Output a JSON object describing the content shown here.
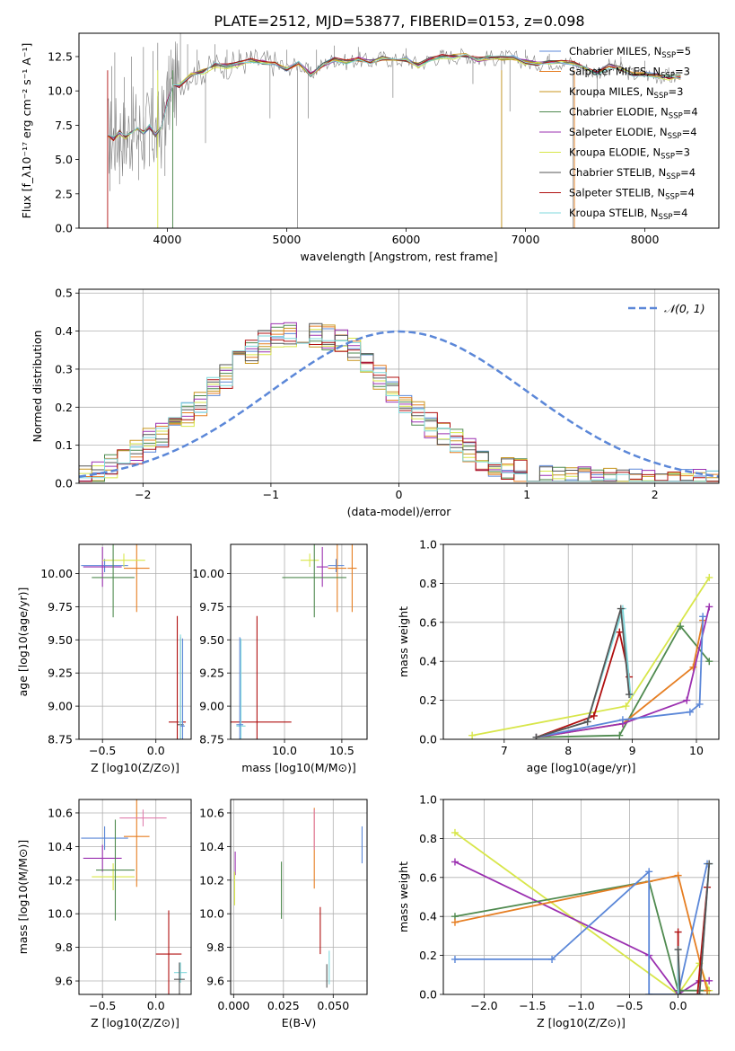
{
  "figure": {
    "title": "PLATE=2512, MJD=53877, FIBERID=0153, z=0.098"
  },
  "colors": {
    "series": [
      "#5b87d8",
      "#e67e22",
      "#c8961e",
      "#4f8a4f",
      "#9b30b0",
      "#d8e64a",
      "#555555",
      "#b01010",
      "#7fd8dc"
    ],
    "data": "#808080",
    "normal": "#5b87d8",
    "grid": "#b0b0b0"
  },
  "chart_data": [
    {
      "id": "spectrum",
      "type": "line",
      "title": "PLATE=2512, MJD=53877, FIBERID=0153, z=0.098",
      "xlabel": "wavelength [Angstrom, rest frame]",
      "ylabel": "Flux [f_λ10⁻¹⁷ erg cm⁻² s⁻¹ A⁻¹]",
      "xlim": [
        3260,
        8620
      ],
      "ylim": [
        0,
        14.2
      ],
      "xticks": [
        "4000",
        "5000",
        "6000",
        "7000",
        "8000"
      ],
      "yticks": [
        "0.0",
        "2.5",
        "5.0",
        "7.5",
        "10.0",
        "12.5"
      ],
      "grid": false,
      "legend_position": "top-right",
      "legend": [
        {
          "name": "Chabrier MILES",
          "sub": "SSP",
          "n": "5"
        },
        {
          "name": "Salpeter MILES",
          "sub": "SSP",
          "n": "3"
        },
        {
          "name": "Kroupa MILES",
          "sub": "SSP",
          "n": "3"
        },
        {
          "name": "Chabrier ELODIE",
          "sub": "SSP",
          "n": "4"
        },
        {
          "name": "Salpeter ELODIE",
          "sub": "SSP",
          "n": "4"
        },
        {
          "name": "Kroupa ELODIE",
          "sub": "SSP",
          "n": "3"
        },
        {
          "name": "Chabrier STELIB",
          "sub": "SSP",
          "n": "4"
        },
        {
          "name": "Salpeter STELIB",
          "sub": "SSP",
          "n": "4"
        },
        {
          "name": "Kroupa STELIB",
          "sub": "SSP",
          "n": "4"
        }
      ],
      "model_continuum": {
        "x": [
          3500,
          3550,
          3600,
          3650,
          3700,
          3750,
          3800,
          3850,
          3900,
          3950,
          4000,
          4050,
          4100,
          4200,
          4300,
          4400,
          4500,
          4600,
          4700,
          4800,
          4900,
          5000,
          5100,
          5200,
          5300,
          5400,
          5500,
          5600,
          5700,
          5800,
          5900,
          6000,
          6100,
          6200,
          6300,
          6400,
          6500,
          6600,
          6700,
          6800,
          6900,
          7000,
          7100,
          7200,
          7300,
          7400,
          7500,
          7600,
          7700,
          7800,
          7900,
          8000,
          8100,
          8200,
          8300
        ],
        "y": [
          6.8,
          6.5,
          7.0,
          6.6,
          7.1,
          7.2,
          6.9,
          7.4,
          6.8,
          7.3,
          9.2,
          10.5,
          10.4,
          11.2,
          11.4,
          11.9,
          11.8,
          12.0,
          12.2,
          12.1,
          12.0,
          11.6,
          12.0,
          11.2,
          11.9,
          12.3,
          12.1,
          12.3,
          12.1,
          12.4,
          12.2,
          12.3,
          11.9,
          12.3,
          12.5,
          12.5,
          12.6,
          12.3,
          12.4,
          12.4,
          12.4,
          12.1,
          12.0,
          12.1,
          12.1,
          12.0,
          11.6,
          11.3,
          11.8,
          11.6,
          11.2,
          11.2,
          11.1,
          11.0,
          11.0
        ]
      },
      "data_spikes": [
        {
          "x": 3520,
          "y": 2.7
        },
        {
          "x": 3535,
          "y": 11.8
        },
        {
          "x": 3560,
          "y": 12.8
        },
        {
          "x": 3600,
          "y": 3.2
        },
        {
          "x": 3640,
          "y": 11.0
        },
        {
          "x": 3700,
          "y": 12.5
        },
        {
          "x": 3760,
          "y": 3.5
        },
        {
          "x": 3800,
          "y": 13.2
        },
        {
          "x": 3850,
          "y": 4.5
        },
        {
          "x": 3880,
          "y": 12.9
        },
        {
          "x": 3920,
          "y": 13.5
        },
        {
          "x": 3980,
          "y": 3.8
        },
        {
          "x": 4030,
          "y": 13.0
        },
        {
          "x": 4045,
          "y": 0.0
        },
        {
          "x": 4110,
          "y": 14.2
        },
        {
          "x": 4170,
          "y": 13.4
        },
        {
          "x": 4250,
          "y": 13.0
        },
        {
          "x": 4320,
          "y": 6.2
        },
        {
          "x": 4400,
          "y": 13.4
        },
        {
          "x": 4500,
          "y": 13.0
        },
        {
          "x": 4600,
          "y": 13.0
        },
        {
          "x": 4700,
          "y": 12.9
        },
        {
          "x": 4860,
          "y": 8.0
        },
        {
          "x": 5000,
          "y": 13.0
        },
        {
          "x": 5090,
          "y": 0.0
        },
        {
          "x": 5180,
          "y": 8.0
        },
        {
          "x": 5250,
          "y": 13.0
        },
        {
          "x": 5400,
          "y": 13.3
        },
        {
          "x": 5600,
          "y": 13.2
        },
        {
          "x": 5890,
          "y": 9.5
        },
        {
          "x": 6000,
          "y": 13.1
        },
        {
          "x": 6300,
          "y": 13.0
        },
        {
          "x": 6560,
          "y": 10.5
        },
        {
          "x": 6800,
          "y": 0.0
        },
        {
          "x": 6870,
          "y": 8.5
        },
        {
          "x": 7000,
          "y": 13.0
        },
        {
          "x": 7200,
          "y": 12.7
        },
        {
          "x": 7400,
          "y": 0.0
        },
        {
          "x": 7600,
          "y": 9.5
        },
        {
          "x": 7800,
          "y": 12.5
        },
        {
          "x": 8000,
          "y": 12.2
        },
        {
          "x": 8200,
          "y": 11.7
        }
      ]
    },
    {
      "id": "residuals",
      "type": "line",
      "xlabel": "(data-model)/error",
      "ylabel": "Normed distribution",
      "xlim": [
        -2.5,
        2.5
      ],
      "ylim": [
        0,
        0.51
      ],
      "xticks": [
        "−2",
        "−1",
        "0",
        "1",
        "2"
      ],
      "yticks": [
        "0.0",
        "0.1",
        "0.2",
        "0.3",
        "0.4",
        "0.5"
      ],
      "grid": true,
      "legend_position": "top-right",
      "legend": [
        "𝒩(0, 1)"
      ],
      "bin_width": 0.1,
      "series": [
        {
          "values": [
            0.021,
            0.029,
            0.046,
            0.068,
            0.082,
            0.114,
            0.129,
            0.154,
            0.181,
            0.212,
            0.246,
            0.28,
            0.318,
            0.348,
            0.37,
            0.385,
            0.392,
            0.398,
            0.392,
            0.385,
            0.37,
            0.35,
            0.32,
            0.282,
            0.245,
            0.211,
            0.18,
            0.154,
            0.129,
            0.107,
            0.085,
            0.067,
            0.053,
            0.042,
            0.031,
            0.024,
            0.018,
            0.014,
            0.011,
            0.009,
            0.007,
            0.005,
            0.004,
            0.003,
            0.003,
            0.003,
            0.002,
            0.002,
            0.002,
            0.002
          ]
        }
      ]
    },
    {
      "id": "age-vs-Z",
      "type": "scatter",
      "xlabel": "Z [log10(Z/Z⊙)]",
      "ylabel": "age  [log10(age/yr)]",
      "xlim": [
        -0.72,
        0.33
      ],
      "ylim": [
        8.75,
        10.22
      ],
      "xticks": [
        "−0.5",
        "0.0"
      ],
      "yticks": [
        "8.75",
        "9.00",
        "9.25",
        "9.50",
        "9.75",
        "10.00"
      ],
      "grid": true,
      "points": [
        {
          "x": -0.48,
          "y": 10.06,
          "xerr": 0.22,
          "yerr": 0.05,
          "c": 0
        },
        {
          "x": -0.18,
          "y": 10.04,
          "xerr": 0.12,
          "yerr": 0.33,
          "c": 1
        },
        {
          "x": -0.5,
          "y": 10.05,
          "xerr": 0.18,
          "yerr": 0.15,
          "c": 4
        },
        {
          "x": -0.3,
          "y": 10.1,
          "xerr": 0.2,
          "yerr": 0.05,
          "c": 5
        },
        {
          "x": -0.4,
          "y": 9.97,
          "xerr": 0.2,
          "yerr": 0.3,
          "c": 3
        },
        {
          "x": 0.2,
          "y": 8.88,
          "xerr": 0.08,
          "yerr": 0.8,
          "c": 7
        },
        {
          "x": 0.23,
          "y": 8.86,
          "xerr": 0.03,
          "yerr": 0.66,
          "c": 6
        },
        {
          "x": 0.23,
          "y": 8.88,
          "xerr": 0.02,
          "yerr": 0.66,
          "c": 8
        },
        {
          "x": 0.25,
          "y": 8.85,
          "xerr": 0.02,
          "yerr": 0.66,
          "c": 0
        }
      ]
    },
    {
      "id": "age-vs-mass",
      "type": "scatter",
      "xlabel": "mass [log10(M/M⊙)]",
      "ylabel": "",
      "xlim": [
        9.53,
        10.72
      ],
      "ylim": [
        8.75,
        10.22
      ],
      "xticks": [
        "10.0",
        "10.5"
      ],
      "yticks": [
        "8.75",
        "9.00",
        "9.25",
        "9.50",
        "9.75",
        "10.00"
      ],
      "grid": true,
      "points": [
        {
          "x": 10.45,
          "y": 10.06,
          "xerr": 0.07,
          "yerr": 0.05,
          "c": 0
        },
        {
          "x": 10.46,
          "y": 10.04,
          "xerr": 0.08,
          "yerr": 0.33,
          "c": 1
        },
        {
          "x": 10.33,
          "y": 10.05,
          "xerr": 0.05,
          "yerr": 0.15,
          "c": 4
        },
        {
          "x": 10.22,
          "y": 10.1,
          "xerr": 0.08,
          "yerr": 0.05,
          "c": 5
        },
        {
          "x": 10.26,
          "y": 9.97,
          "xerr": 0.28,
          "yerr": 0.3,
          "c": 3
        },
        {
          "x": 10.59,
          "y": 10.04,
          "xerr": 0.04,
          "yerr": 0.33,
          "c": 1
        },
        {
          "x": 9.76,
          "y": 8.88,
          "xerr": 0.3,
          "yerr": 0.8,
          "c": 7
        },
        {
          "x": 9.62,
          "y": 8.85,
          "xerr": 0.04,
          "yerr": 0.66,
          "c": 8
        },
        {
          "x": 9.61,
          "y": 8.86,
          "xerr": 0.03,
          "yerr": 0.66,
          "c": 0
        }
      ]
    },
    {
      "id": "weight-vs-age",
      "type": "line",
      "xlabel": "age  [log10(age/yr)]",
      "ylabel": "mass weight",
      "xlim": [
        6.05,
        10.35
      ],
      "ylim": [
        0,
        1.0
      ],
      "xticks": [
        "7",
        "8",
        "9",
        "10"
      ],
      "yticks": [
        "0.0",
        "0.2",
        "0.4",
        "0.6",
        "0.8",
        "1.0"
      ],
      "grid": true,
      "series": [
        {
          "c": 5,
          "x": [
            6.5,
            8.9,
            10.2
          ],
          "y": [
            0.02,
            0.17,
            0.83
          ]
        },
        {
          "c": 3,
          "x": [
            7.5,
            8.8,
            9.75,
            10.2
          ],
          "y": [
            0.01,
            0.02,
            0.58,
            0.4
          ]
        },
        {
          "c": 1,
          "x": [
            7.5,
            8.85,
            9.95,
            10.1
          ],
          "y": [
            0.01,
            0.08,
            0.37,
            0.61
          ]
        },
        {
          "c": 4,
          "x": [
            7.5,
            8.85,
            9.85,
            10.2
          ],
          "y": [
            0.01,
            0.08,
            0.2,
            0.68
          ]
        },
        {
          "c": 0,
          "x": [
            7.5,
            8.85,
            9.9,
            10.05,
            10.1
          ],
          "y": [
            0.01,
            0.1,
            0.14,
            0.18,
            0.63
          ]
        },
        {
          "c": 7,
          "x": [
            7.5,
            8.4,
            8.8,
            8.95
          ],
          "y": [
            0.01,
            0.12,
            0.55,
            0.32
          ]
        },
        {
          "c": 8,
          "x": [
            7.5,
            8.3,
            8.85,
            8.97
          ],
          "y": [
            0.01,
            0.09,
            0.67,
            0.23
          ]
        },
        {
          "c": 6,
          "x": [
            7.5,
            8.3,
            8.82,
            8.95
          ],
          "y": [
            0.01,
            0.09,
            0.67,
            0.23
          ]
        }
      ]
    },
    {
      "id": "mass-vs-Z",
      "type": "scatter",
      "xlabel": "Z [log10(Z/Z⊙)]",
      "ylabel": "mass [log10(M/M⊙)]",
      "xlim": [
        -0.72,
        0.33
      ],
      "ylim": [
        9.52,
        10.68
      ],
      "xticks": [
        "−0.5",
        "0.0"
      ],
      "yticks": [
        "9.6",
        "9.8",
        "10.0",
        "10.2",
        "10.4",
        "10.6"
      ],
      "grid": true,
      "points": [
        {
          "x": -0.48,
          "y": 10.45,
          "xerr": 0.22,
          "yerr": 0.07,
          "c": 0
        },
        {
          "x": -0.18,
          "y": 10.46,
          "xerr": 0.12,
          "yerr": 0.3,
          "c": 1
        },
        {
          "x": -0.12,
          "y": 10.57,
          "xerr": 0.22,
          "yerr": 0.05,
          "c": 9
        },
        {
          "x": -0.5,
          "y": 10.33,
          "xerr": 0.18,
          "yerr": 0.08,
          "c": 4
        },
        {
          "x": -0.4,
          "y": 10.22,
          "xerr": 0.2,
          "yerr": 0.08,
          "c": 5
        },
        {
          "x": -0.38,
          "y": 10.26,
          "xerr": 0.18,
          "yerr": 0.3,
          "c": 3
        },
        {
          "x": 0.12,
          "y": 9.76,
          "xerr": 0.12,
          "yerr": 0.26,
          "c": 7
        },
        {
          "x": 0.23,
          "y": 9.65,
          "xerr": 0.06,
          "yerr": 0.06,
          "c": 8
        },
        {
          "x": 0.22,
          "y": 9.61,
          "xerr": 0.05,
          "yerr": 0.1,
          "c": 6
        }
      ]
    },
    {
      "id": "mass-vs-ebv",
      "type": "scatter",
      "xlabel": "E(B-V)",
      "ylabel": "",
      "xlim": [
        -0.0015,
        0.067
      ],
      "ylim": [
        9.52,
        10.68
      ],
      "xticks": [
        "0.000",
        "0.025",
        "0.050"
      ],
      "yticks": [
        "9.6",
        "9.8",
        "10.0",
        "10.2",
        "10.4",
        "10.6"
      ],
      "grid": true,
      "points": [
        {
          "x": 0.0645,
          "y": 10.41,
          "yerr": 0.11,
          "c": 0
        },
        {
          "x": 0.0405,
          "y": 10.39,
          "yerr": 0.24,
          "c": 1
        },
        {
          "x": 0.0405,
          "y": 10.5,
          "yerr": 0.12,
          "c": 9
        },
        {
          "x": 0.0008,
          "y": 10.3,
          "yerr": 0.07,
          "c": 4
        },
        {
          "x": 0.0005,
          "y": 10.15,
          "yerr": 0.1,
          "c": 5
        },
        {
          "x": 0.024,
          "y": 10.14,
          "yerr": 0.17,
          "c": 3
        },
        {
          "x": 0.0435,
          "y": 9.9,
          "yerr": 0.14,
          "c": 7
        },
        {
          "x": 0.048,
          "y": 9.68,
          "yerr": 0.1,
          "c": 8
        },
        {
          "x": 0.0468,
          "y": 9.63,
          "yerr": 0.07,
          "c": 6
        }
      ]
    },
    {
      "id": "weight-vs-Z",
      "type": "line",
      "xlabel": "Z [log10(Z/Z⊙)]",
      "ylabel": "mass weight",
      "xlim": [
        -2.42,
        0.42
      ],
      "ylim": [
        0,
        1.0
      ],
      "xticks": [
        "−2.0",
        "−1.5",
        "−1.0",
        "−0.5",
        "0.0"
      ],
      "yticks": [
        "0.0",
        "0.2",
        "0.4",
        "0.6",
        "0.8",
        "1.0"
      ],
      "grid": true,
      "series": [
        {
          "c": 5,
          "x": [
            -2.3,
            0.0,
            0.22,
            0.32
          ],
          "y": [
            0.83,
            0.0,
            0.16,
            0.02
          ]
        },
        {
          "c": 4,
          "x": [
            -2.3,
            -0.3,
            0.0,
            0.22,
            0.32
          ],
          "y": [
            0.68,
            0.2,
            0.0,
            0.07,
            0.07
          ]
        },
        {
          "c": 3,
          "x": [
            -2.3,
            -0.3,
            0.0,
            0.3
          ],
          "y": [
            0.4,
            0.58,
            0.02,
            0.02
          ]
        },
        {
          "c": 1,
          "x": [
            -2.3,
            0.0,
            0.3
          ],
          "y": [
            0.37,
            0.61,
            0.02
          ]
        },
        {
          "c": 0,
          "x": [
            -2.3,
            -1.3,
            -0.3,
            -0.3,
            0.0,
            0.3
          ],
          "y": [
            0.18,
            0.18,
            0.63,
            0.0,
            0.0,
            0.67
          ]
        },
        {
          "c": 7,
          "x": [
            0.0,
            0.0,
            0.2,
            0.3
          ],
          "y": [
            0.32,
            0.0,
            0.0,
            0.55
          ]
        },
        {
          "c": 8,
          "x": [
            0.0,
            0.0,
            0.22,
            0.32
          ],
          "y": [
            0.23,
            0.0,
            0.0,
            0.67
          ]
        },
        {
          "c": 6,
          "x": [
            0.0,
            0.02,
            0.22,
            0.32
          ],
          "y": [
            0.23,
            0.0,
            0.0,
            0.67
          ]
        }
      ]
    }
  ]
}
